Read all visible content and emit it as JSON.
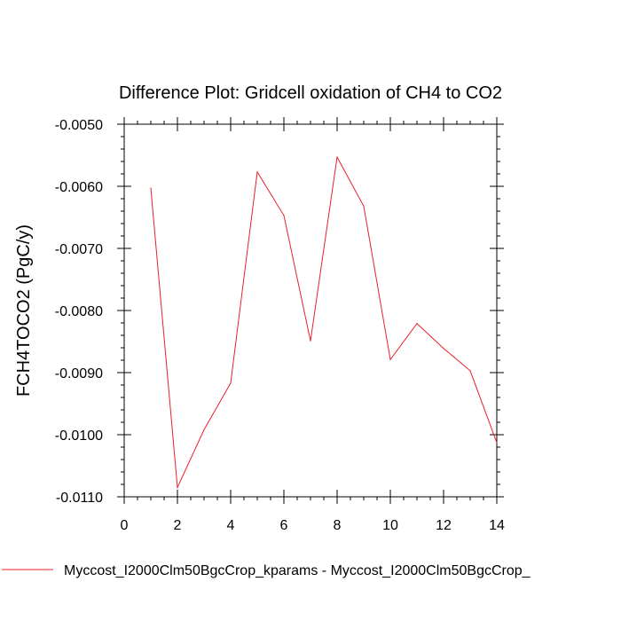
{
  "chart_data": {
    "type": "line",
    "title": "Difference Plot: Gridcell oxidation of CH4 to CO2",
    "xlabel": "",
    "ylabel": "FCH4TOCO2  (PgC/y)",
    "xlim": [
      0,
      14
    ],
    "ylim": [
      -0.011,
      -0.005
    ],
    "x_ticks": [
      0,
      2,
      4,
      6,
      8,
      10,
      12,
      14
    ],
    "x_tick_labels": [
      "0",
      "2",
      "4",
      "6",
      "8",
      "10",
      "12",
      "14"
    ],
    "y_ticks": [
      -0.005,
      -0.006,
      -0.007,
      -0.008,
      -0.009,
      -0.01,
      -0.011
    ],
    "y_tick_labels": [
      "-0.0050",
      "-0.0060",
      "-0.0070",
      "-0.0080",
      "-0.0090",
      "-0.0100",
      "-0.0110"
    ],
    "grid": false,
    "series": [
      {
        "name": "Myccost_I2000Clm50BgcCrop_kparams - Myccost_I2000Clm50BgcCrop_",
        "color": "#e8202a",
        "x": [
          1,
          2,
          3,
          4,
          5,
          6,
          7,
          8,
          9,
          10,
          11,
          12,
          13,
          14
        ],
        "y": [
          -0.00603,
          -0.01085,
          -0.00992,
          -0.00917,
          -0.00577,
          -0.00647,
          -0.00849,
          -0.00553,
          -0.00632,
          -0.00879,
          -0.00821,
          -0.00861,
          -0.00897,
          -0.01013
        ]
      }
    ],
    "legend_position": "bottom"
  }
}
